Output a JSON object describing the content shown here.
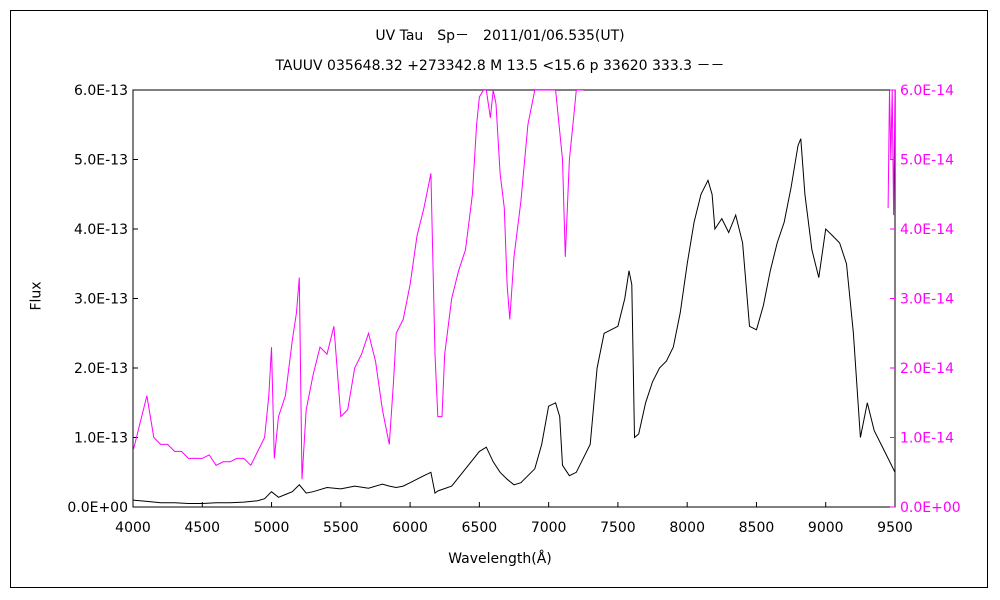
{
  "title_line1": "UV Tau　Sp－　2011/01/06.535(UT)",
  "title_line2": "TAUUV 035648.32 +273342.8 M 13.5 <15.6 p 33620 333.3 －－",
  "xlabel": "Wavelength(Å)",
  "ylabel": "Flux",
  "colors": {
    "black_series": "#000000",
    "magenta_series": "#ff00ff",
    "axis": "#000000"
  },
  "chart_data": {
    "type": "line",
    "xlim": [
      4000,
      9500
    ],
    "ylim_left": [
      0,
      6e-13
    ],
    "ylim_right": [
      0,
      6e-14
    ],
    "x_ticks": [
      "4000",
      "4500",
      "5000",
      "5500",
      "6000",
      "6500",
      "7000",
      "7500",
      "8000",
      "8500",
      "9000",
      "9500"
    ],
    "y_ticks_left": [
      "0.0E+00",
      "1.0E-13",
      "2.0E-13",
      "3.0E-13",
      "4.0E-13",
      "5.0E-13",
      "6.0E-13"
    ],
    "y_ticks_right": [
      "0.0E+00",
      "1.0E-14",
      "2.0E-14",
      "3.0E-14",
      "4.0E-14",
      "5.0E-14",
      "6.0E-14"
    ],
    "grid": false,
    "series": [
      {
        "axis": "left",
        "color": "#000000",
        "x": [
          4000,
          4100,
          4200,
          4300,
          4400,
          4500,
          4600,
          4700,
          4800,
          4900,
          4950,
          5000,
          5050,
          5100,
          5150,
          5200,
          5250,
          5300,
          5400,
          5500,
          5600,
          5700,
          5800,
          5850,
          5900,
          5950,
          6000,
          6100,
          6150,
          6180,
          6200,
          6300,
          6400,
          6500,
          6550,
          6600,
          6650,
          6700,
          6750,
          6800,
          6900,
          6950,
          7000,
          7050,
          7080,
          7100,
          7150,
          7200,
          7300,
          7350,
          7400,
          7450,
          7500,
          7550,
          7580,
          7600,
          7620,
          7650,
          7700,
          7750,
          7800,
          7850,
          7900,
          7950,
          8000,
          8050,
          8100,
          8150,
          8180,
          8200,
          8250,
          8300,
          8350,
          8400,
          8450,
          8500,
          8550,
          8600,
          8650,
          8700,
          8750,
          8800,
          8820,
          8850,
          8900,
          8950,
          9000,
          9050,
          9100,
          9150,
          9200,
          9250,
          9300,
          9350,
          9400,
          9450,
          9500
        ],
        "values": [
          1e-14,
          8e-15,
          6e-15,
          6e-15,
          5e-15,
          5e-15,
          6e-15,
          6e-15,
          7e-15,
          9e-15,
          1.2e-14,
          2.2e-14,
          1.4e-14,
          1.8e-14,
          2.2e-14,
          3.2e-14,
          2e-14,
          2.2e-14,
          2.8e-14,
          2.6e-14,
          3e-14,
          2.7e-14,
          3.3e-14,
          3e-14,
          2.8e-14,
          3e-14,
          3.5e-14,
          4.5e-14,
          5e-14,
          2e-14,
          2.3e-14,
          3e-14,
          5.5e-14,
          8e-14,
          8.6e-14,
          6.5e-14,
          5e-14,
          4e-14,
          3.2e-14,
          3.5e-14,
          5.5e-14,
          9e-14,
          1.45e-13,
          1.5e-13,
          1.3e-13,
          6e-14,
          4.5e-14,
          5e-14,
          9e-14,
          2e-13,
          2.5e-13,
          2.55e-13,
          2.6e-13,
          3e-13,
          3.4e-13,
          3.2e-13,
          1e-13,
          1.05e-13,
          1.5e-13,
          1.8e-13,
          2e-13,
          2.1e-13,
          2.3e-13,
          2.8e-13,
          3.5e-13,
          4.1e-13,
          4.5e-13,
          4.7e-13,
          4.5e-13,
          4e-13,
          4.15e-13,
          3.95e-13,
          4.2e-13,
          3.8e-13,
          2.6e-13,
          2.55e-13,
          2.9e-13,
          3.4e-13,
          3.8e-13,
          4.1e-13,
          4.6e-13,
          5.2e-13,
          5.3e-13,
          4.5e-13,
          3.7e-13,
          3.3e-13,
          4e-13,
          3.9e-13,
          3.8e-13,
          3.5e-13,
          2.5e-13,
          1e-13,
          1.5e-13,
          1.1e-13,
          9e-14,
          7e-14,
          5e-14
        ]
      },
      {
        "axis": "right",
        "color": "#ff00ff",
        "x": [
          4000,
          4050,
          4100,
          4150,
          4200,
          4250,
          4300,
          4350,
          4400,
          4450,
          4500,
          4550,
          4600,
          4650,
          4700,
          4750,
          4800,
          4850,
          4900,
          4950,
          4980,
          5000,
          5020,
          5050,
          5100,
          5150,
          5180,
          5200,
          5220,
          5250,
          5300,
          5350,
          5400,
          5450,
          5500,
          5550,
          5600,
          5650,
          5700,
          5750,
          5800,
          5850,
          5880,
          5900,
          5950,
          6000,
          6050,
          6100,
          6150,
          6180,
          6200,
          6230,
          6250,
          6300,
          6350,
          6400,
          6450,
          6480,
          6500,
          6530,
          6550,
          6580,
          6600,
          6620,
          6650,
          6680,
          6700,
          6720,
          6750,
          6800,
          6850,
          6900,
          6950,
          7000,
          7050,
          7100,
          7120,
          7150,
          7180,
          7200,
          7230,
          7250
        ],
        "values": [
          8e-15,
          1.2e-14,
          1.6e-14,
          1e-14,
          9e-15,
          9e-15,
          8e-15,
          8e-15,
          7e-15,
          7e-15,
          7e-15,
          7.5e-15,
          6e-15,
          6.5e-15,
          6.5e-15,
          7e-15,
          7e-15,
          6e-15,
          8e-15,
          1e-14,
          1.6e-14,
          2.3e-14,
          7e-15,
          1.3e-14,
          1.6e-14,
          2.4e-14,
          2.8e-14,
          3.3e-14,
          4e-15,
          1.4e-14,
          1.9e-14,
          2.3e-14,
          2.2e-14,
          2.6e-14,
          1.3e-14,
          1.4e-14,
          2e-14,
          2.2e-14,
          2.5e-14,
          2.1e-14,
          1.4e-14,
          9e-15,
          1.8e-14,
          2.5e-14,
          2.7e-14,
          3.2e-14,
          3.9e-14,
          4.3e-14,
          4.8e-14,
          2.2e-14,
          1.3e-14,
          1.3e-14,
          2.2e-14,
          3e-14,
          3.4e-14,
          3.7e-14,
          4.5e-14,
          5.5e-14,
          5.9e-14,
          6e-14,
          6e-14,
          5.6e-14,
          6e-14,
          5.8e-14,
          4.8e-14,
          4.3e-14,
          3.2e-14,
          2.7e-14,
          3.6e-14,
          4.4e-14,
          5.5e-14,
          6e-14,
          6e-14,
          6e-14,
          6e-14,
          5e-14,
          3.6e-14,
          5e-14,
          5.6e-14,
          6e-14,
          6e-14,
          6e-14
        ]
      },
      {
        "axis": "right",
        "color": "#ff00ff",
        "x": [
          9450,
          9460,
          9470,
          9480,
          9490,
          9500
        ],
        "values": [
          4.3e-14,
          6e-14,
          5e-14,
          6e-14,
          4.2e-14,
          6e-14
        ]
      }
    ]
  }
}
